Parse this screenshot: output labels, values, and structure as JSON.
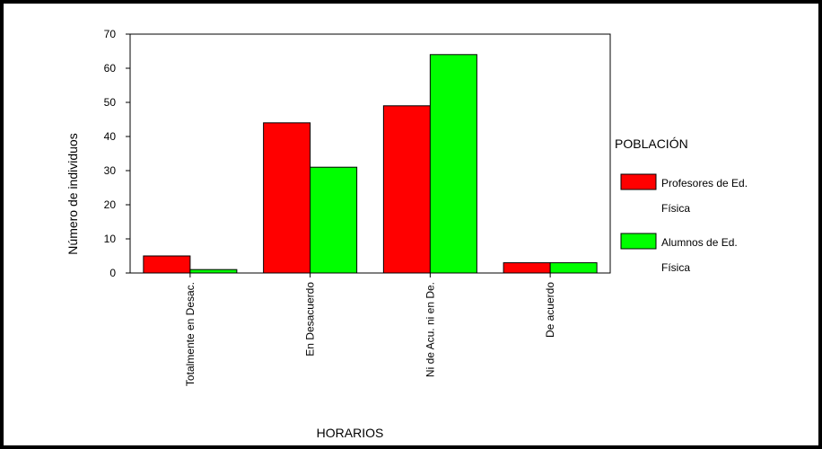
{
  "chart_data": {
    "type": "bar",
    "title": "",
    "xlabel": "HORARIOS",
    "ylabel": "Número de individuos",
    "ylim": [
      0,
      70
    ],
    "yticks": [
      0,
      10,
      20,
      30,
      40,
      50,
      60,
      70
    ],
    "categories": [
      "Totalmente en Desac.",
      "En Desacuerdo",
      "Ni de Acu. ni en De.",
      "De acuerdo"
    ],
    "legend": {
      "title": "POBLACIÓN",
      "placement": "right"
    },
    "series": [
      {
        "name_line1": "Profesores de Ed.",
        "name_line2": "Física",
        "color": "#ff0000",
        "values": [
          5,
          44,
          49,
          3
        ]
      },
      {
        "name_line1": "Alumnos de Ed.",
        "name_line2": "Física",
        "color": "#00ff00",
        "values": [
          1,
          31,
          64,
          3
        ]
      }
    ]
  }
}
